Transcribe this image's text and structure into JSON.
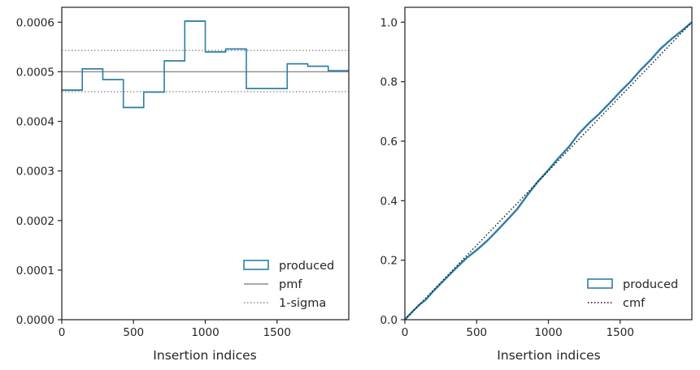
{
  "chart_data": [
    {
      "type": "histogram",
      "xlabel": "Insertion indices",
      "ylabel": "",
      "xlim": [
        0,
        2000
      ],
      "ylim": [
        0,
        0.00063
      ],
      "xticks": [
        0,
        500,
        1000,
        1500
      ],
      "xtick_labels": [
        "0",
        "500",
        "1000",
        "1500"
      ],
      "yticks": [
        0,
        0.0001,
        0.0002,
        0.0003,
        0.0004,
        0.0005,
        0.0006
      ],
      "ytick_labels": [
        "0.0000",
        "0.0001",
        "0.0002",
        "0.0003",
        "0.0004",
        "0.0005",
        "0.0006"
      ],
      "bin_edges": [
        0,
        143,
        286,
        429,
        571,
        714,
        857,
        1000,
        1143,
        1286,
        1429,
        1571,
        1714,
        1857,
        2000
      ],
      "counts": [
        0.000463,
        0.000506,
        0.000484,
        0.000428,
        0.000459,
        0.000522,
        0.000602,
        0.00054,
        0.000546,
        0.000466,
        0.000466,
        0.000516,
        0.000511,
        0.000502
      ],
      "pmf": 0.0005,
      "sigma_band": [
        0.00046,
        0.000543
      ],
      "grid": false,
      "legend_position": "lower-right",
      "legend": [
        "produced",
        "pmf",
        "1-sigma"
      ],
      "colors": {
        "produced": "#2d7ea8",
        "pmf": "#8c8c8c",
        "sigma": "#8c8c8c"
      }
    },
    {
      "type": "line",
      "xlabel": "Insertion indices",
      "ylabel": "",
      "xlim": [
        0,
        2000
      ],
      "ylim": [
        0,
        1.05
      ],
      "xticks": [
        0,
        500,
        1000,
        1500
      ],
      "xtick_labels": [
        "0",
        "500",
        "1000",
        "1500"
      ],
      "yticks": [
        0,
        0.2,
        0.4,
        0.6,
        0.8,
        1.0
      ],
      "ytick_labels": [
        "0.0",
        "0.2",
        "0.4",
        "0.6",
        "0.8",
        "1.0"
      ],
      "series": [
        {
          "name": "produced",
          "x": [
            0,
            50,
            100,
            143,
            200,
            286,
            350,
            429,
            500,
            571,
            640,
            714,
            780,
            857,
            930,
            1000,
            1070,
            1143,
            1210,
            1286,
            1350,
            1429,
            1500,
            1571,
            1640,
            1714,
            1780,
            1857,
            1930,
            2000
          ],
          "y": [
            0.0,
            0.026,
            0.05,
            0.066,
            0.097,
            0.139,
            0.17,
            0.207,
            0.234,
            0.264,
            0.298,
            0.336,
            0.37,
            0.421,
            0.466,
            0.503,
            0.543,
            0.581,
            0.624,
            0.662,
            0.69,
            0.729,
            0.766,
            0.8,
            0.838,
            0.874,
            0.91,
            0.943,
            0.971,
            1.0
          ]
        },
        {
          "name": "cmf",
          "x": [
            0,
            2000
          ],
          "y": [
            0,
            1
          ]
        }
      ],
      "grid": false,
      "legend_position": "lower-right",
      "legend": [
        "produced",
        "cmf"
      ],
      "colors": {
        "produced": "#2d7ea8",
        "cmf": "#111111"
      }
    }
  ]
}
